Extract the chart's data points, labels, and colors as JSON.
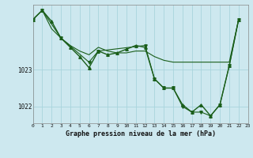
{
  "title": "Graphe pression niveau de la mer (hPa)",
  "bg_color": "#cde8ef",
  "grid_color": "#a8d4dc",
  "line_color": "#1a5e1a",
  "x_min": 0,
  "x_max": 23,
  "y_min": 1021.55,
  "y_max": 1024.75,
  "yticks": [
    1022,
    1023
  ],
  "xticks": [
    0,
    1,
    2,
    3,
    4,
    5,
    6,
    7,
    8,
    9,
    10,
    11,
    12,
    13,
    14,
    15,
    16,
    17,
    18,
    19,
    20,
    21,
    22,
    23
  ],
  "series1": [
    [
      0,
      1024.35
    ],
    [
      1,
      1024.6
    ],
    [
      2,
      1024.3
    ],
    [
      3,
      1023.85
    ],
    [
      4,
      1023.6
    ],
    [
      5,
      1023.35
    ],
    [
      6,
      1023.05
    ],
    [
      7,
      1023.5
    ],
    [
      8,
      1023.4
    ],
    [
      9,
      1023.45
    ],
    [
      10,
      1023.55
    ],
    [
      11,
      1023.65
    ],
    [
      12,
      1023.6
    ],
    [
      13,
      1022.75
    ],
    [
      14,
      1022.5
    ],
    [
      15,
      1022.5
    ],
    [
      16,
      1022.05
    ],
    [
      17,
      1021.85
    ],
    [
      18,
      1022.05
    ],
    [
      19,
      1021.75
    ],
    [
      20,
      1022.05
    ],
    [
      21,
      1023.1
    ],
    [
      22,
      1024.35
    ]
  ],
  "series2": [
    [
      0,
      1024.35
    ],
    [
      1,
      1024.6
    ],
    [
      2,
      1024.1
    ],
    [
      3,
      1023.85
    ],
    [
      4,
      1023.65
    ],
    [
      5,
      1023.5
    ],
    [
      6,
      1023.4
    ],
    [
      7,
      1023.6
    ],
    [
      8,
      1023.5
    ],
    [
      9,
      1023.45
    ],
    [
      10,
      1023.45
    ],
    [
      11,
      1023.5
    ],
    [
      12,
      1023.5
    ],
    [
      13,
      1023.35
    ],
    [
      14,
      1023.25
    ],
    [
      15,
      1023.2
    ],
    [
      16,
      1023.2
    ],
    [
      17,
      1023.2
    ],
    [
      18,
      1023.2
    ],
    [
      19,
      1023.2
    ],
    [
      20,
      1023.2
    ],
    [
      21,
      1023.2
    ],
    [
      22,
      1024.35
    ]
  ],
  "series3": [
    [
      0,
      1024.35
    ],
    [
      1,
      1024.6
    ],
    [
      3,
      1023.85
    ],
    [
      6,
      1023.2
    ],
    [
      7,
      1023.5
    ],
    [
      12,
      1023.65
    ],
    [
      13,
      1022.75
    ],
    [
      14,
      1022.5
    ],
    [
      15,
      1022.5
    ],
    [
      16,
      1022.0
    ],
    [
      17,
      1021.85
    ],
    [
      18,
      1021.85
    ],
    [
      19,
      1021.75
    ],
    [
      20,
      1022.05
    ],
    [
      21,
      1023.1
    ],
    [
      22,
      1024.35
    ]
  ]
}
